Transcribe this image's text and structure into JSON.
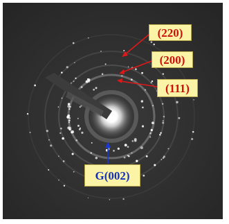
{
  "labels": {
    "ring_220": "(220)",
    "ring_200": "(200)",
    "ring_111": "(111)",
    "graphite_002": "G(002)"
  },
  "colors": {
    "label_background": "#fbf4a6",
    "label_text_red": "#cc1010",
    "label_text_blue": "#1530b8",
    "arrow_red": "#e01818",
    "arrow_blue": "#1838d8",
    "pattern_background": "#2b2b2b"
  }
}
